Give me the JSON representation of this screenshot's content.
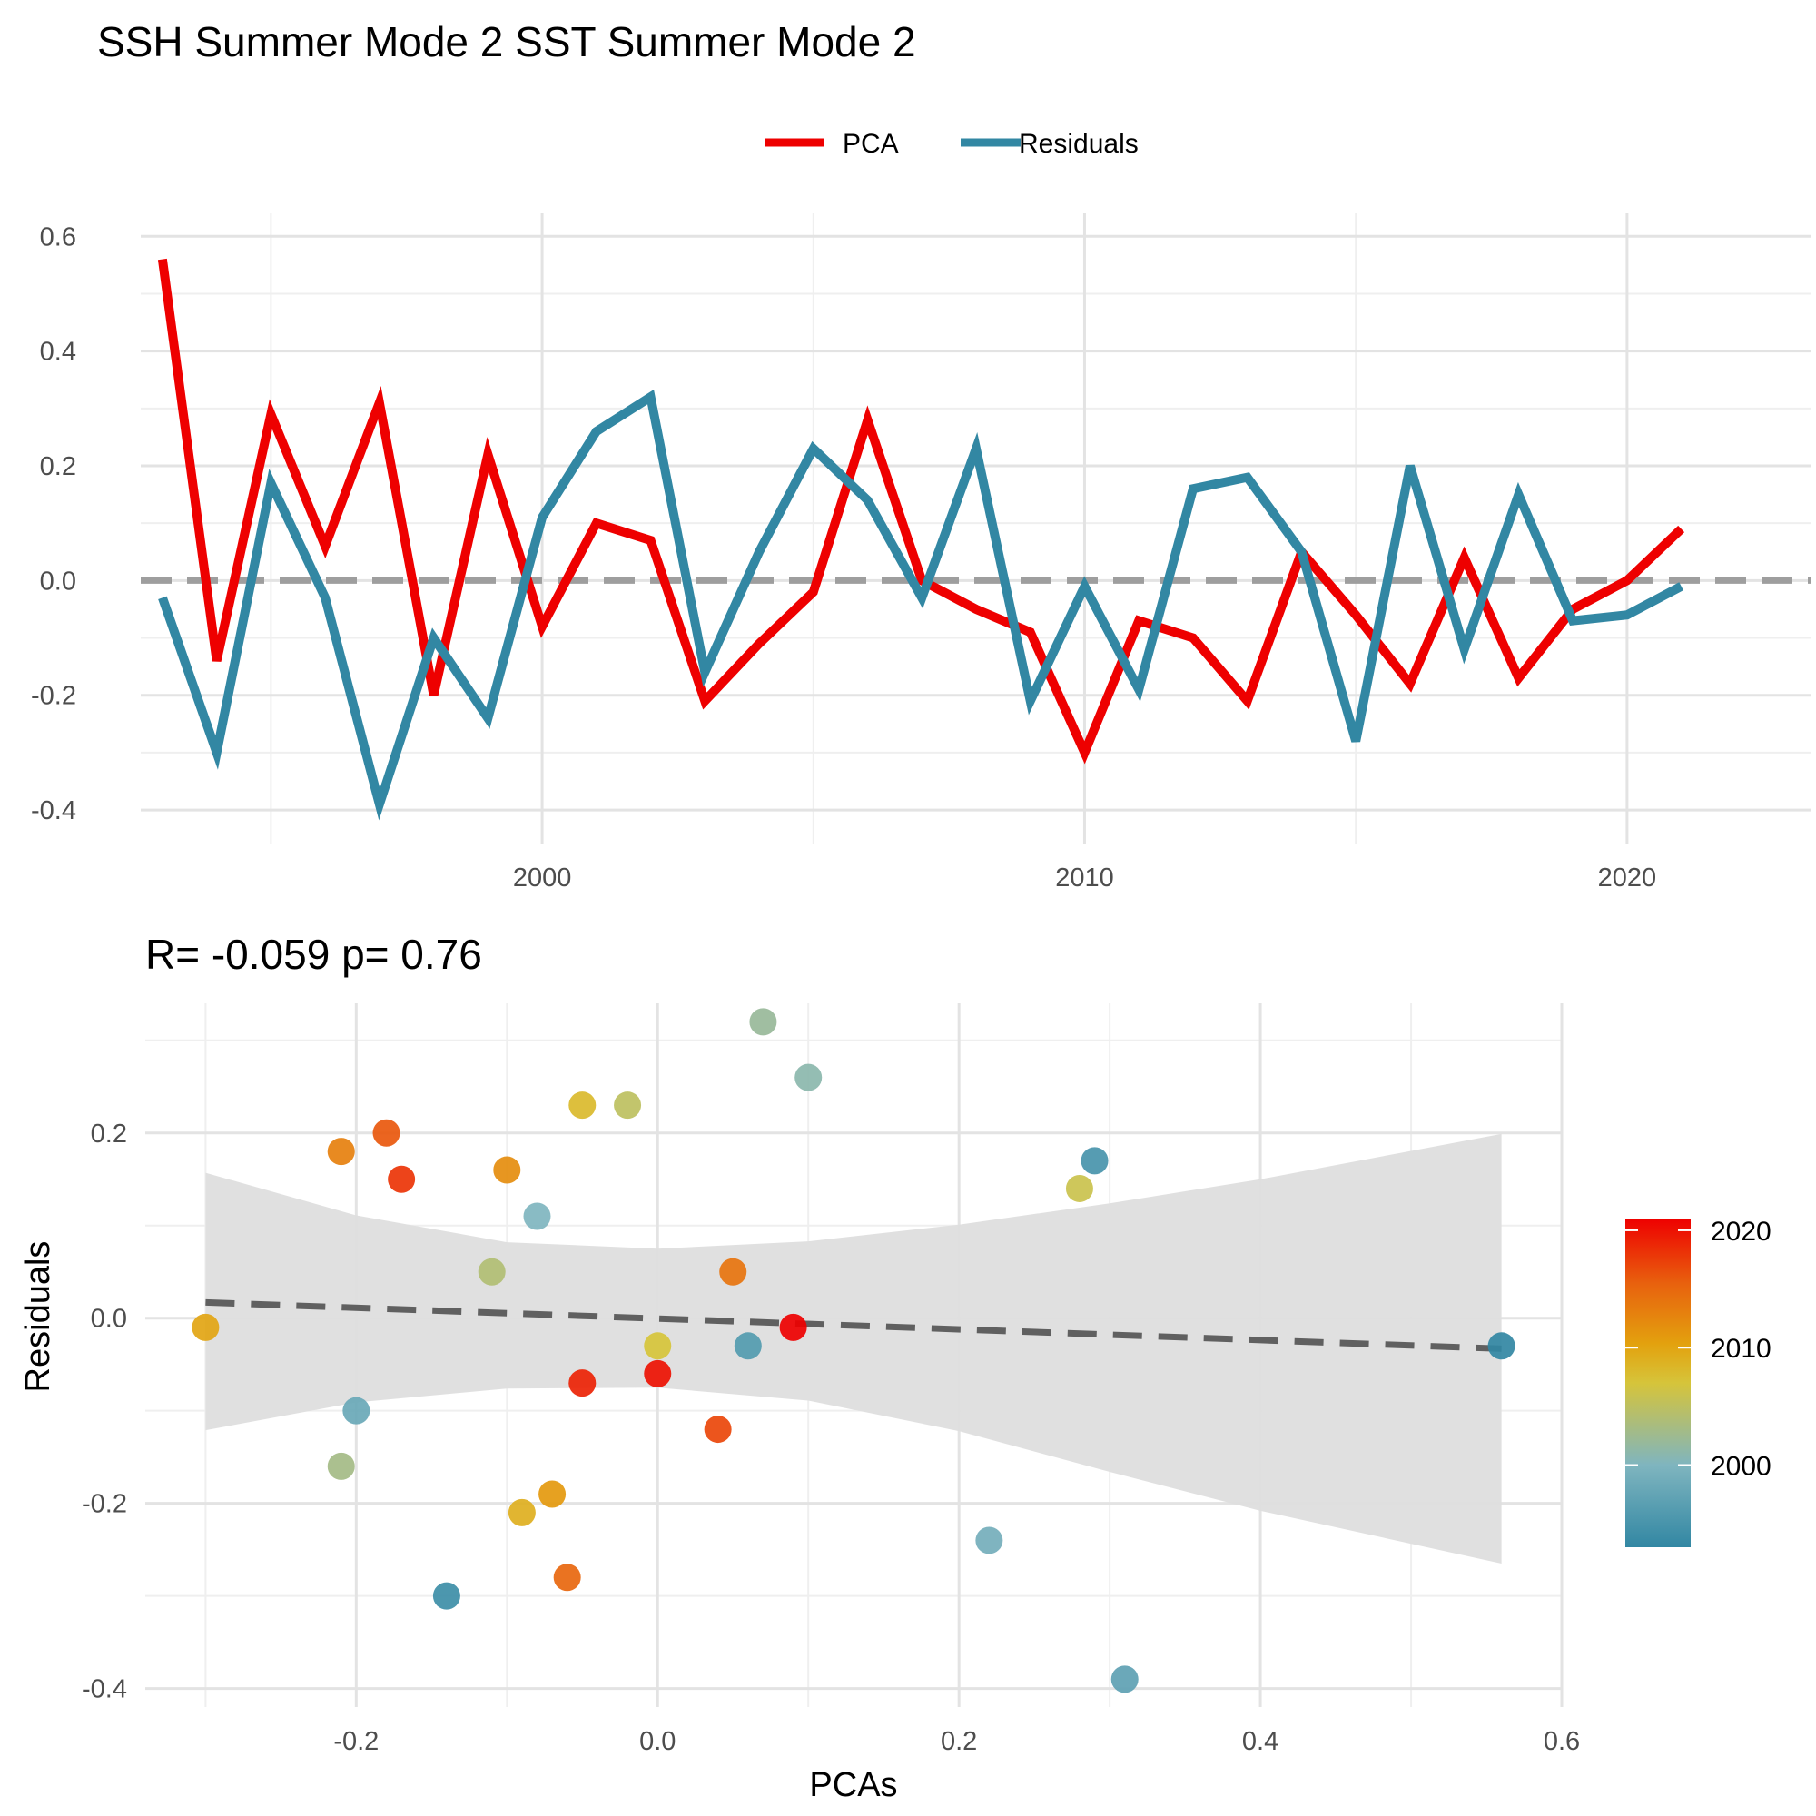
{
  "title": "SSH Summer Mode 2 SST Summer Mode 2",
  "colors": {
    "pca": "#ee0000",
    "residuals": "#3287a3",
    "zero_line": "#9e9e9e",
    "ribbon": "#dedede",
    "fit_line": "#606060"
  },
  "chart_data": [
    {
      "type": "line",
      "title": "",
      "xlabel": "",
      "ylabel": "",
      "legend_position": "top",
      "legend": [
        "PCA",
        "Residuals"
      ],
      "x": [
        1993,
        1994,
        1995,
        1996,
        1997,
        1998,
        1999,
        2000,
        2001,
        2002,
        2003,
        2004,
        2005,
        2006,
        2007,
        2008,
        2009,
        2010,
        2011,
        2012,
        2013,
        2014,
        2015,
        2016,
        2017,
        2018,
        2019,
        2020,
        2021
      ],
      "series": [
        {
          "name": "PCA",
          "values": [
            0.56,
            -0.14,
            0.29,
            0.06,
            0.31,
            -0.2,
            0.22,
            -0.08,
            0.1,
            0.07,
            -0.21,
            -0.11,
            -0.02,
            0.28,
            0.0,
            -0.05,
            -0.09,
            -0.3,
            -0.07,
            -0.1,
            -0.21,
            0.05,
            -0.06,
            -0.18,
            0.04,
            -0.17,
            -0.05,
            0.0,
            0.09
          ]
        },
        {
          "name": "Residuals",
          "values": [
            -0.03,
            -0.3,
            0.17,
            -0.03,
            -0.39,
            -0.1,
            -0.24,
            0.11,
            0.26,
            0.32,
            -0.16,
            0.05,
            0.23,
            0.14,
            -0.03,
            0.23,
            -0.21,
            -0.01,
            -0.19,
            0.16,
            0.18,
            0.05,
            -0.28,
            0.2,
            -0.12,
            0.15,
            -0.07,
            -0.06,
            -0.01
          ]
        }
      ],
      "xticks": [
        2000,
        2010,
        2020
      ],
      "yticks": [
        "0.6",
        "0.4",
        "0.2",
        "0.0",
        "-0.2",
        "-0.4"
      ],
      "xlim": [
        1992.6,
        2023.4
      ],
      "ylim": [
        -0.46,
        0.64
      ],
      "reference_line": 0,
      "grid": true
    },
    {
      "type": "scatter",
      "title": "R= -0.059  p= 0.76",
      "xlabel": "PCAs",
      "ylabel": "Residuals",
      "xticks": [
        "-0.2",
        "0.0",
        "0.2",
        "0.4",
        "0.6"
      ],
      "yticks": [
        "0.2",
        "0.0",
        "-0.2",
        "-0.4"
      ],
      "xlim": [
        -0.34,
        0.6
      ],
      "ylim": [
        -0.42,
        0.34
      ],
      "grid": true,
      "points": [
        {
          "x": 0.56,
          "y": -0.03,
          "year": 1993
        },
        {
          "x": -0.14,
          "y": -0.3,
          "year": 1994
        },
        {
          "x": 0.29,
          "y": 0.17,
          "year": 1995
        },
        {
          "x": 0.06,
          "y": -0.03,
          "year": 1996
        },
        {
          "x": 0.31,
          "y": -0.39,
          "year": 1997
        },
        {
          "x": -0.2,
          "y": -0.1,
          "year": 1998
        },
        {
          "x": 0.22,
          "y": -0.24,
          "year": 1999
        },
        {
          "x": -0.08,
          "y": 0.11,
          "year": 2000
        },
        {
          "x": 0.1,
          "y": 0.26,
          "year": 2001
        },
        {
          "x": 0.07,
          "y": 0.32,
          "year": 2002
        },
        {
          "x": -0.21,
          "y": -0.16,
          "year": 2003
        },
        {
          "x": -0.11,
          "y": 0.05,
          "year": 2004
        },
        {
          "x": -0.02,
          "y": 0.23,
          "year": 2005
        },
        {
          "x": 0.28,
          "y": 0.14,
          "year": 2006
        },
        {
          "x": 0.0,
          "y": -0.03,
          "year": 2007
        },
        {
          "x": -0.05,
          "y": 0.23,
          "year": 2008
        },
        {
          "x": -0.09,
          "y": -0.21,
          "year": 2009
        },
        {
          "x": -0.3,
          "y": -0.01,
          "year": 2010
        },
        {
          "x": -0.07,
          "y": -0.19,
          "year": 2011
        },
        {
          "x": -0.1,
          "y": 0.16,
          "year": 2012
        },
        {
          "x": -0.21,
          "y": 0.18,
          "year": 2013
        },
        {
          "x": 0.05,
          "y": 0.05,
          "year": 2014
        },
        {
          "x": -0.06,
          "y": -0.28,
          "year": 2015
        },
        {
          "x": -0.18,
          "y": 0.2,
          "year": 2016
        },
        {
          "x": 0.04,
          "y": -0.12,
          "year": 2017
        },
        {
          "x": -0.17,
          "y": 0.15,
          "year": 2018
        },
        {
          "x": -0.05,
          "y": -0.07,
          "year": 2019
        },
        {
          "x": 0.0,
          "y": -0.06,
          "year": 2020
        },
        {
          "x": 0.09,
          "y": -0.01,
          "year": 2021
        }
      ],
      "fit_line": {
        "x": [
          -0.3,
          0.56
        ],
        "y": [
          0.017,
          -0.033
        ]
      },
      "confidence_band": {
        "x": [
          -0.3,
          -0.2,
          -0.1,
          0.0,
          0.1,
          0.2,
          0.3,
          0.4,
          0.56
        ],
        "upper": [
          0.157,
          0.111,
          0.082,
          0.075,
          0.083,
          0.101,
          0.124,
          0.15,
          0.199
        ],
        "lower": [
          -0.121,
          -0.091,
          -0.076,
          -0.075,
          -0.089,
          -0.122,
          -0.166,
          -0.208,
          -0.265
        ]
      },
      "colorbar": {
        "title": "",
        "ticks": [
          "2020",
          "2010",
          "2000"
        ],
        "range": [
          1993,
          2021
        ],
        "colors": [
          "#3287a3",
          "#7fb5bf",
          "#d6c43a",
          "#e3a10e",
          "#e8620e",
          "#ee0000"
        ]
      }
    }
  ]
}
